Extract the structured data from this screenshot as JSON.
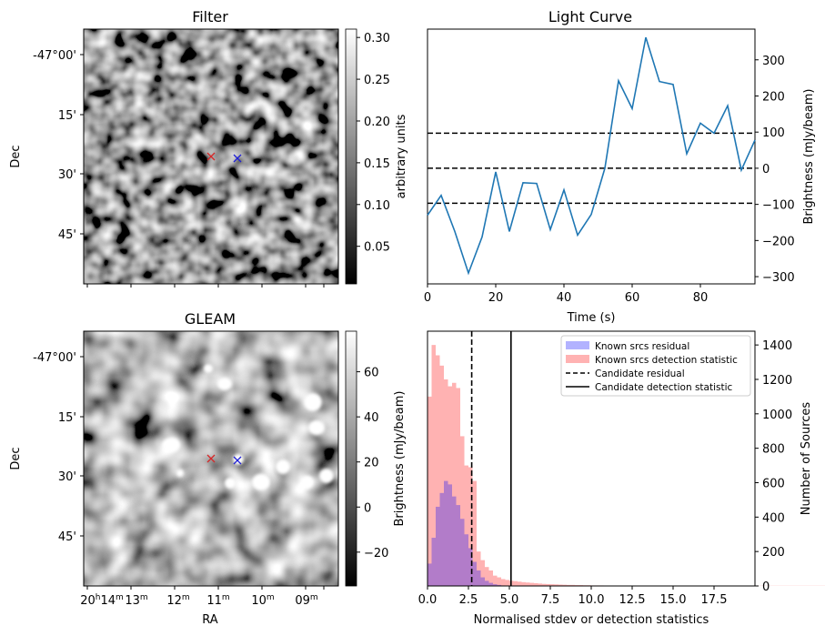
{
  "chart_data": [
    {
      "panel": "filter",
      "type": "heatmap",
      "title": "Filter",
      "ylabel": "Dec",
      "y_ticks": [
        "-47°00'",
        "15'",
        "30'",
        "45'"
      ],
      "colorbar": {
        "label": "arbitrary units",
        "ticks": [
          "0.05",
          "0.10",
          "0.15",
          "0.20",
          "0.25",
          "0.30"
        ],
        "range": [
          0.005,
          0.31
        ],
        "colormap": "gray"
      },
      "markers": [
        {
          "symbol": "x",
          "color": "#d62728"
        },
        {
          "symbol": "x",
          "color": "#1f1fd6"
        }
      ]
    },
    {
      "panel": "light-curve",
      "type": "line",
      "title": "Light Curve",
      "xlabel": "Time (s)",
      "ylabel": "Brightness (mJy/beam)",
      "x_ticks": [
        "0",
        "20",
        "40",
        "60",
        "80"
      ],
      "y_ticks": [
        "−300",
        "−200",
        "−100",
        "0",
        "100",
        "200",
        "300"
      ],
      "xlim": [
        0,
        96
      ],
      "ylim": [
        -320,
        385
      ],
      "series": [
        {
          "color": "#1f77b4",
          "x": [
            0,
            4,
            8,
            12,
            16,
            20,
            24,
            28,
            32,
            36,
            40,
            44,
            48,
            52,
            56,
            60,
            64,
            68,
            72,
            76,
            80,
            84,
            88,
            92,
            96
          ],
          "y": [
            -130,
            -75,
            -175,
            -290,
            -190,
            -10,
            -175,
            -40,
            -42,
            -170,
            -60,
            -185,
            -128,
            0,
            242,
            165,
            362,
            240,
            232,
            40,
            125,
            97,
            173,
            -5,
            78
          ]
        }
      ],
      "hlines": [
        {
          "y": 97,
          "style": "dashed"
        },
        {
          "y": 0,
          "style": "dashed"
        },
        {
          "y": -97,
          "style": "dashed"
        }
      ]
    },
    {
      "panel": "gleam",
      "type": "heatmap",
      "title": "GLEAM",
      "xlabel": "RA",
      "ylabel": "Dec",
      "x_ticks": [
        {
          "h": "20",
          "hu": "h",
          "m": "14",
          "mu": "m"
        },
        {
          "m": "13",
          "mu": "m"
        },
        {
          "m": "12",
          "mu": "m"
        },
        {
          "m": "11",
          "mu": "m"
        },
        {
          "m": "10",
          "mu": "m"
        },
        {
          "m": "09",
          "mu": "m"
        }
      ],
      "y_ticks": [
        "-47°00'",
        "15'",
        "30'",
        "45'"
      ],
      "colorbar": {
        "label": "Brightness (mJy/beam)",
        "ticks": [
          "−20",
          "0",
          "20",
          "40",
          "60"
        ],
        "range": [
          -35,
          78
        ],
        "colormap": "gray"
      },
      "markers": [
        {
          "symbol": "x",
          "color": "#d62728"
        },
        {
          "symbol": "x",
          "color": "#1f1fd6"
        }
      ]
    },
    {
      "panel": "histogram",
      "type": "bar",
      "xlabel": "Normalised stdev or detection statistics",
      "ylabel_right": "Number of Sources",
      "x_ticks": [
        "0.0",
        "2.5",
        "5.0",
        "7.5",
        "10.0",
        "12.5",
        "15.0",
        "17.5"
      ],
      "y_ticks": [
        "0",
        "200",
        "400",
        "600",
        "800",
        "1000",
        "1200",
        "1400"
      ],
      "xlim": [
        0,
        20
      ],
      "ylim": [
        0,
        1480
      ],
      "bin_width": 0.25,
      "legend": {
        "position": "upper right",
        "entries": [
          "Known srcs residual",
          "Known srcs detection statistic",
          "Candidate residual",
          "Candidate detection statistic"
        ]
      },
      "series": [
        {
          "name": "Known srcs residual",
          "color": "#0000ff",
          "alpha": 0.3,
          "values": [
            130,
            280,
            460,
            540,
            610,
            590,
            520,
            470,
            390,
            300,
            220,
            140,
            90,
            50,
            30,
            18,
            10,
            6,
            3,
            2
          ]
        },
        {
          "name": "Known srcs detection statistic",
          "color": "#ff0000",
          "alpha": 0.3,
          "values": [
            1100,
            1400,
            1340,
            1280,
            1200,
            1160,
            1180,
            1150,
            870,
            700,
            690,
            610,
            200,
            150,
            110,
            90,
            60,
            50,
            40,
            35,
            30,
            28,
            25,
            22,
            20,
            18,
            16,
            14,
            12,
            11,
            10,
            9,
            8,
            7,
            6,
            6,
            5,
            5,
            4,
            4,
            3,
            3,
            3,
            2,
            2,
            2,
            2,
            2,
            1,
            1,
            1,
            1,
            1,
            1,
            1,
            1,
            1,
            1,
            1,
            1,
            1,
            1,
            1,
            1,
            1,
            1,
            1,
            1,
            1,
            1,
            1,
            1,
            1,
            1,
            1,
            1,
            1,
            1,
            1,
            1,
            1,
            1,
            1,
            1,
            1,
            1,
            1,
            1,
            1,
            1,
            1,
            1,
            1,
            1,
            1,
            1,
            1,
            1,
            1,
            1,
            1,
            1,
            1,
            1,
            1,
            1,
            1,
            1,
            1,
            1,
            1,
            1,
            1,
            1,
            1,
            1,
            1,
            1,
            1,
            1,
            1,
            1,
            1,
            1,
            1,
            1,
            1,
            1,
            1,
            1,
            1,
            1,
            1,
            1,
            1,
            1,
            1,
            1,
            1,
            1,
            1,
            1,
            1,
            1,
            1,
            1,
            1,
            1,
            1,
            1,
            1,
            1,
            1,
            1,
            1,
            1,
            1,
            1,
            1,
            1
          ]
        }
      ],
      "vlines": [
        {
          "name": "Candidate residual",
          "x": 2.7,
          "style": "dashed"
        },
        {
          "name": "Candidate detection statistic",
          "x": 5.1,
          "style": "solid"
        }
      ]
    }
  ]
}
